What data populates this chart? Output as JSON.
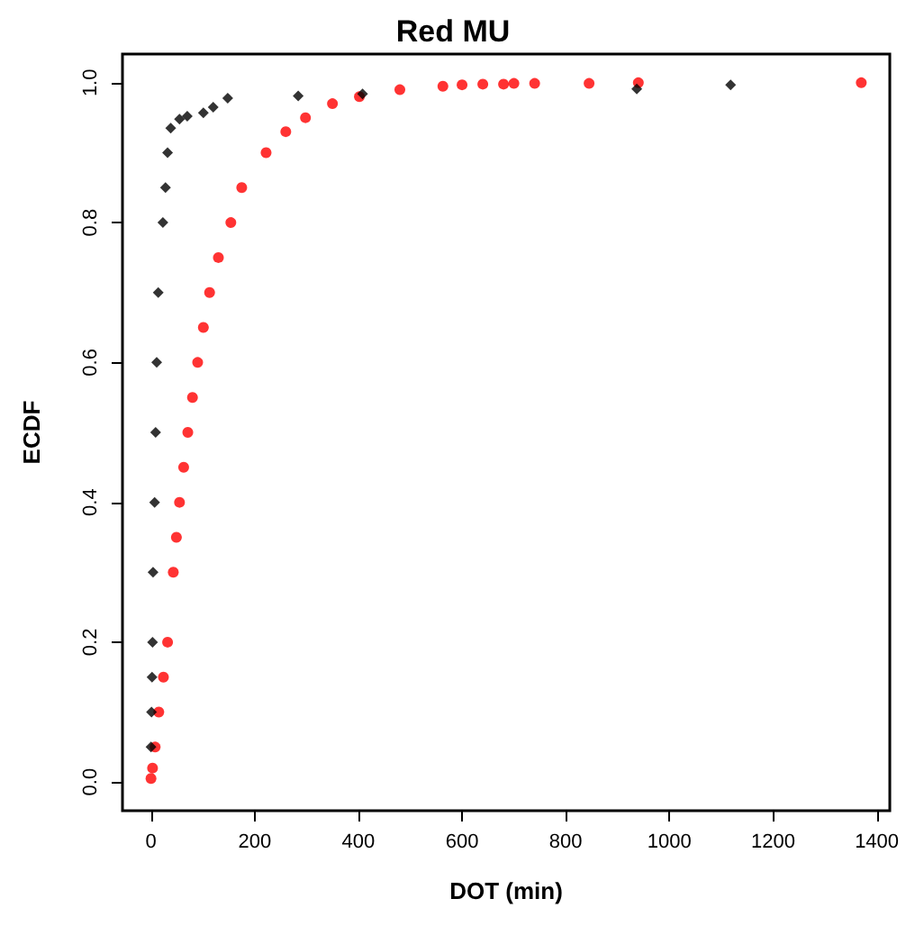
{
  "chart_data": {
    "type": "scatter",
    "title": "Red MU",
    "xlabel": "DOT (min)",
    "ylabel": "ECDF",
    "xlim": [
      -55,
      1425
    ],
    "xticks": [
      0,
      200,
      400,
      600,
      800,
      1000,
      1200,
      1400
    ],
    "ylim": [
      -0.041,
      1.041
    ],
    "yticks": [
      {
        "value": 0,
        "label": "0.0"
      },
      0.2,
      0.4,
      0.6,
      0.8,
      {
        "value": 1,
        "label": "1.0"
      }
    ],
    "grid": false,
    "series": [
      {
        "color": "#ff0000",
        "marker": "circle",
        "x": [
          0,
          3,
          8,
          15,
          24,
          32,
          43,
          49,
          55,
          63,
          71,
          80,
          90,
          101,
          113,
          130,
          154,
          175,
          222,
          260,
          298,
          350,
          402,
          480,
          563,
          600,
          640,
          680,
          700,
          740,
          845,
          940,
          1370
        ],
        "values": [
          0.005,
          0.02,
          0.05,
          0.1,
          0.15,
          0.2,
          0.3,
          0.35,
          0.4,
          0.45,
          0.5,
          0.55,
          0.6,
          0.65,
          0.7,
          0.75,
          0.8,
          0.85,
          0.9,
          0.93,
          0.95,
          0.97,
          0.98,
          0.99,
          0.995,
          0.997,
          0.998,
          0.998,
          0.999,
          0.999,
          0.999,
          1.0,
          1.0
        ]
      },
      {
        "color": "#000000",
        "marker": "diamond",
        "x": [
          0,
          1,
          2,
          3,
          4,
          7,
          9,
          11,
          14,
          23,
          28,
          32,
          38,
          55,
          70,
          101,
          120,
          148,
          284,
          408,
          937,
          1118
        ],
        "values": [
          0.05,
          0.1,
          0.15,
          0.2,
          0.3,
          0.4,
          0.5,
          0.6,
          0.7,
          0.8,
          0.85,
          0.9,
          0.935,
          0.948,
          0.952,
          0.957,
          0.965,
          0.978,
          0.981,
          0.984,
          0.991,
          0.997
        ]
      }
    ]
  }
}
